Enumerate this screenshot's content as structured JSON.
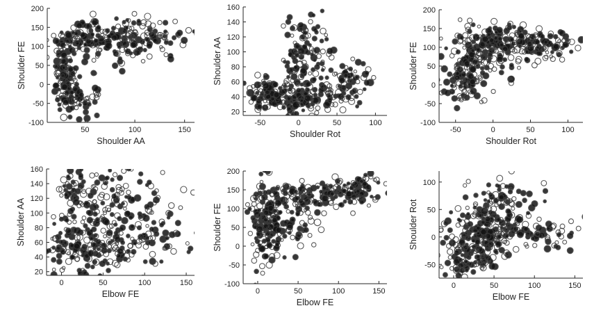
{
  "colors": {
    "ink": "#141414",
    "ring": "#3a3a3a",
    "axis": "#262626"
  },
  "chart_data": [
    {
      "type": "scatter",
      "xlabel": "Shoulder AA",
      "ylabel": "Shoulder FE",
      "xlim": [
        12,
        160
      ],
      "ylim": [
        -100,
        200
      ],
      "xticks": [
        50,
        100,
        150
      ],
      "yticks": [
        -100,
        -50,
        0,
        50,
        100,
        150,
        200
      ],
      "grid": false,
      "clusters": [
        {
          "cx": 30,
          "cy": 25,
          "sx": 6,
          "sy": 50,
          "w": 0.3
        },
        {
          "cx": 60,
          "cy": 125,
          "sx": 25,
          "sy": 20,
          "w": 0.3
        },
        {
          "cx": 110,
          "cy": 130,
          "sx": 25,
          "sy": 25,
          "w": 0.2
        },
        {
          "cx": 45,
          "cy": -40,
          "sx": 10,
          "sy": 18,
          "w": 0.1
        },
        {
          "cx": 90,
          "cy": 100,
          "sx": 30,
          "sy": 30,
          "w": 0.1
        }
      ]
    },
    {
      "type": "scatter",
      "xlabel": "Shoulder Rot",
      "ylabel": "Shoulder AA",
      "xlim": [
        -72,
        115
      ],
      "ylim": [
        15,
        160
      ],
      "xticks": [
        -50,
        0,
        50,
        100
      ],
      "yticks": [
        20,
        40,
        60,
        80,
        100,
        120,
        140,
        160
      ],
      "grid": false,
      "clusters": [
        {
          "cx": 0,
          "cy": 40,
          "sx": 35,
          "sy": 12,
          "w": 0.4
        },
        {
          "cx": 10,
          "cy": 95,
          "sx": 15,
          "sy": 30,
          "w": 0.3
        },
        {
          "cx": 60,
          "cy": 65,
          "sx": 20,
          "sy": 15,
          "w": 0.15
        },
        {
          "cx": -40,
          "cy": 45,
          "sx": 15,
          "sy": 10,
          "w": 0.15
        }
      ]
    },
    {
      "type": "scatter",
      "xlabel": "Shoulder Rot",
      "ylabel": "Shoulder FE",
      "xlim": [
        -72,
        120
      ],
      "ylim": [
        -100,
        200
      ],
      "xticks": [
        -50,
        0,
        50,
        100
      ],
      "yticks": [
        -100,
        -50,
        0,
        50,
        100,
        150,
        200
      ],
      "grid": false,
      "clusters": [
        {
          "cx": 0,
          "cy": 100,
          "sx": 25,
          "sy": 35,
          "w": 0.4
        },
        {
          "cx": -40,
          "cy": 5,
          "sx": 15,
          "sy": 35,
          "w": 0.2
        },
        {
          "cx": 60,
          "cy": 110,
          "sx": 25,
          "sy": 20,
          "w": 0.25
        },
        {
          "cx": -25,
          "cy": 80,
          "sx": 15,
          "sy": 30,
          "w": 0.15
        }
      ]
    },
    {
      "type": "scatter",
      "xlabel": "Elbow FE",
      "ylabel": "Shoulder AA",
      "xlim": [
        -18,
        160
      ],
      "ylim": [
        15,
        160
      ],
      "xticks": [
        0,
        50,
        100,
        150
      ],
      "yticks": [
        20,
        40,
        60,
        80,
        100,
        120,
        140,
        160
      ],
      "grid": false,
      "clusters": [
        {
          "cx": 30,
          "cy": 50,
          "sx": 30,
          "sy": 20,
          "w": 0.4
        },
        {
          "cx": 50,
          "cy": 110,
          "sx": 30,
          "sy": 25,
          "w": 0.3
        },
        {
          "cx": 110,
          "cy": 80,
          "sx": 25,
          "sy": 30,
          "w": 0.2
        },
        {
          "cx": 15,
          "cy": 130,
          "sx": 10,
          "sy": 15,
          "w": 0.1
        }
      ]
    },
    {
      "type": "scatter",
      "xlabel": "Elbow FE",
      "ylabel": "Shoulder FE",
      "xlim": [
        -18,
        160
      ],
      "ylim": [
        -100,
        200
      ],
      "xticks": [
        0,
        50,
        100,
        150
      ],
      "yticks": [
        -100,
        -50,
        0,
        50,
        100,
        150,
        200
      ],
      "grid": false,
      "clusters": [
        {
          "cx": 10,
          "cy": 60,
          "sx": 10,
          "sy": 60,
          "w": 0.35
        },
        {
          "cx": 60,
          "cy": 135,
          "sx": 30,
          "sy": 20,
          "w": 0.3
        },
        {
          "cx": 120,
          "cy": 150,
          "sx": 20,
          "sy": 20,
          "w": 0.2
        },
        {
          "cx": 40,
          "cy": 50,
          "sx": 20,
          "sy": 30,
          "w": 0.15
        }
      ]
    },
    {
      "type": "scatter",
      "xlabel": "Elbow FE",
      "ylabel": "Shoulder Rot",
      "xlim": [
        -18,
        160
      ],
      "ylim": [
        -75,
        120
      ],
      "xticks": [
        0,
        50,
        100,
        150
      ],
      "yticks": [
        -50,
        0,
        50,
        100
      ],
      "grid": false,
      "clusters": [
        {
          "cx": 30,
          "cy": 0,
          "sx": 20,
          "sy": 25,
          "w": 0.4
        },
        {
          "cx": 90,
          "cy": 10,
          "sx": 35,
          "sy": 15,
          "w": 0.25
        },
        {
          "cx": 60,
          "cy": 60,
          "sx": 25,
          "sy": 25,
          "w": 0.2
        },
        {
          "cx": 20,
          "cy": -40,
          "sx": 15,
          "sy": 15,
          "w": 0.15
        }
      ]
    }
  ]
}
